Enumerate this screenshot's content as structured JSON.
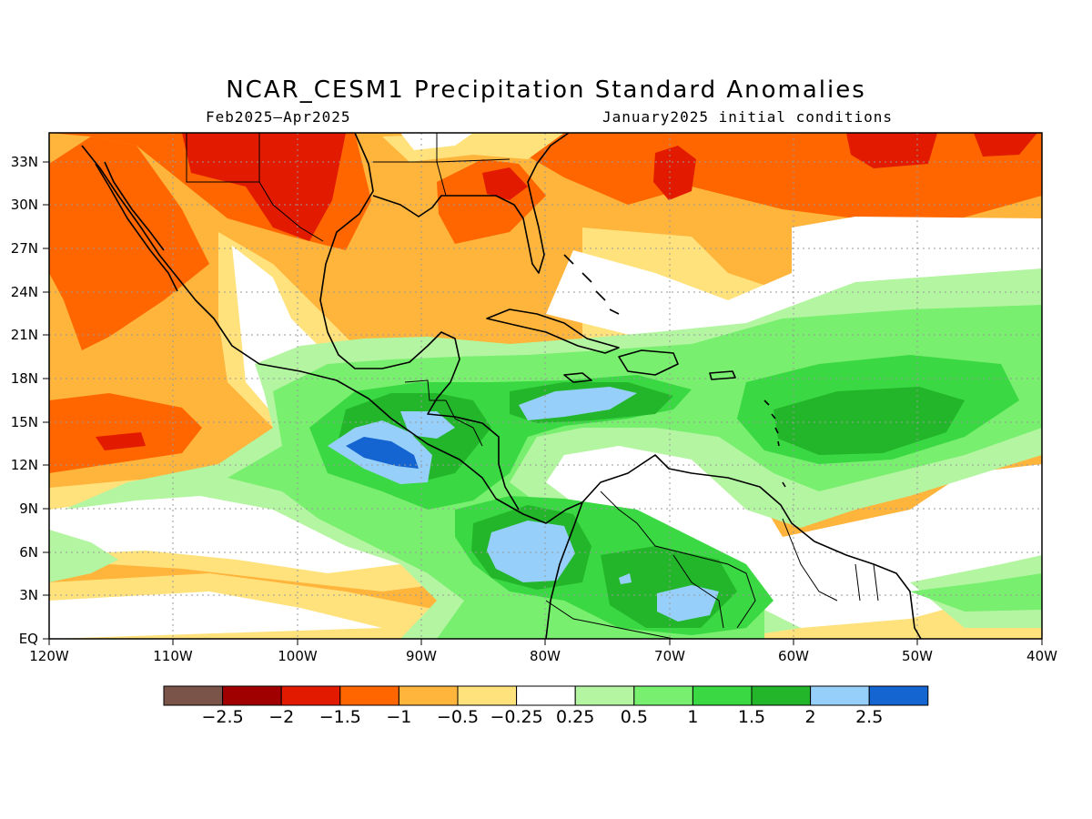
{
  "title": "NCAR_CESM1 Precipitation Standard Anomalies",
  "period": "Feb2025–Apr2025",
  "initial_conditions": "January2025 initial conditions",
  "map": {
    "lon_range": [
      -120,
      -40
    ],
    "lat_range": [
      0,
      35
    ],
    "lon_ticks": [
      "120W",
      "110W",
      "100W",
      "90W",
      "80W",
      "70W",
      "60W",
      "50W",
      "40W"
    ],
    "lat_ticks": [
      "EQ",
      "3N",
      "6N",
      "9N",
      "12N",
      "15N",
      "18N",
      "21N",
      "24N",
      "27N",
      "30N",
      "33N"
    ],
    "gridlines": true
  },
  "colorbar": {
    "colors": [
      "#7b5449",
      "#a00000",
      "#e11a00",
      "#ff6600",
      "#ffb43c",
      "#ffe27c",
      "#ffffff",
      "#b4f5a2",
      "#78ef6e",
      "#3ad843",
      "#23b62a",
      "#96d0fa",
      "#1464d2"
    ],
    "labels": [
      "−2.5",
      "−2",
      "−1.5",
      "−1",
      "−0.5",
      "−0.25",
      "0.25",
      "0.5",
      "1",
      "1.5",
      "2",
      "2.5"
    ]
  }
}
